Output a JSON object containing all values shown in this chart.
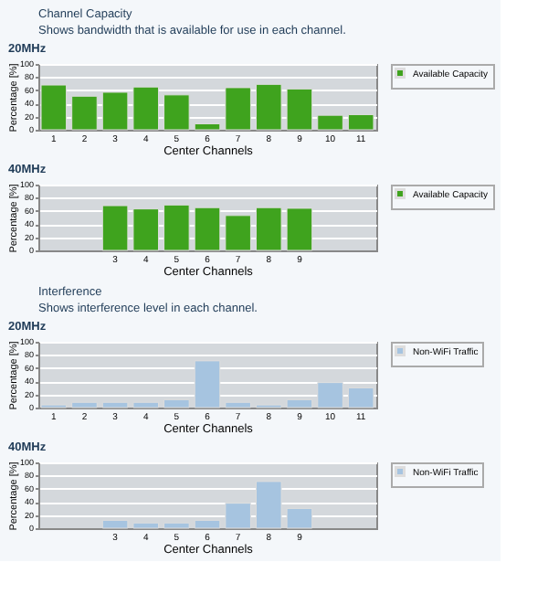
{
  "chart_data": [
    {
      "type": "bar",
      "title": "20MHz",
      "annotations": [
        "Channel Capacity",
        "Shows bandwidth that is available for use in each channel."
      ],
      "xlabel": "Center Channels",
      "ylabel": "Percentage [%]",
      "categories": [
        "1",
        "2",
        "3",
        "4",
        "5",
        "6",
        "7",
        "8",
        "9",
        "10",
        "11"
      ],
      "series": [
        {
          "name": "Available Capacity",
          "color": "#3fa31e",
          "values": [
            68,
            51,
            57,
            65,
            53,
            9,
            64,
            69,
            62,
            22,
            23
          ]
        }
      ],
      "ylim": [
        0,
        100
      ],
      "yticks": [
        0,
        20,
        40,
        60,
        80,
        100
      ],
      "grid": "y",
      "legend": "top right"
    },
    {
      "type": "bar",
      "title": "40MHz",
      "xlabel": "Center Channels",
      "ylabel": "Percentage [%]",
      "categories": [
        null,
        null,
        "3",
        "4",
        "5",
        "6",
        "7",
        "8",
        "9",
        null,
        null
      ],
      "series": [
        {
          "name": "Available Capacity",
          "color": "#3fa31e",
          "values": [
            null,
            null,
            68,
            63,
            69,
            65,
            53,
            65,
            64,
            null,
            null
          ]
        }
      ],
      "ylim": [
        0,
        100
      ],
      "yticks": [
        0,
        20,
        40,
        60,
        80,
        100
      ],
      "grid": "y",
      "legend": "top right"
    },
    {
      "type": "bar",
      "title": "20MHz",
      "annotations": [
        "Interference",
        "Shows interference level in each channel."
      ],
      "xlabel": "Center Channels",
      "ylabel": "Percentage [%]",
      "categories": [
        "1",
        "2",
        "3",
        "4",
        "5",
        "6",
        "7",
        "8",
        "9",
        "10",
        "11"
      ],
      "series": [
        {
          "name": "Non-WiFi Traffic",
          "color": "#a6c4e0",
          "values": [
            4,
            8,
            8,
            8,
            12,
            71,
            8,
            4,
            12,
            38,
            30
          ]
        }
      ],
      "ylim": [
        0,
        100
      ],
      "yticks": [
        0,
        20,
        40,
        60,
        80,
        100
      ],
      "grid": "y",
      "legend": "top right"
    },
    {
      "type": "bar",
      "title": "40MHz",
      "xlabel": "Center Channels",
      "ylabel": "Percentage [%]",
      "categories": [
        null,
        null,
        "3",
        "4",
        "5",
        "6",
        "7",
        "8",
        "9",
        null,
        null
      ],
      "series": [
        {
          "name": "Non-WiFi Traffic",
          "color": "#a6c4e0",
          "values": [
            null,
            null,
            12,
            8,
            8,
            12,
            38,
            71,
            30,
            null,
            null
          ]
        }
      ],
      "ylim": [
        0,
        100
      ],
      "yticks": [
        0,
        20,
        40,
        60,
        80,
        100
      ],
      "grid": "y",
      "legend": "top right"
    }
  ]
}
